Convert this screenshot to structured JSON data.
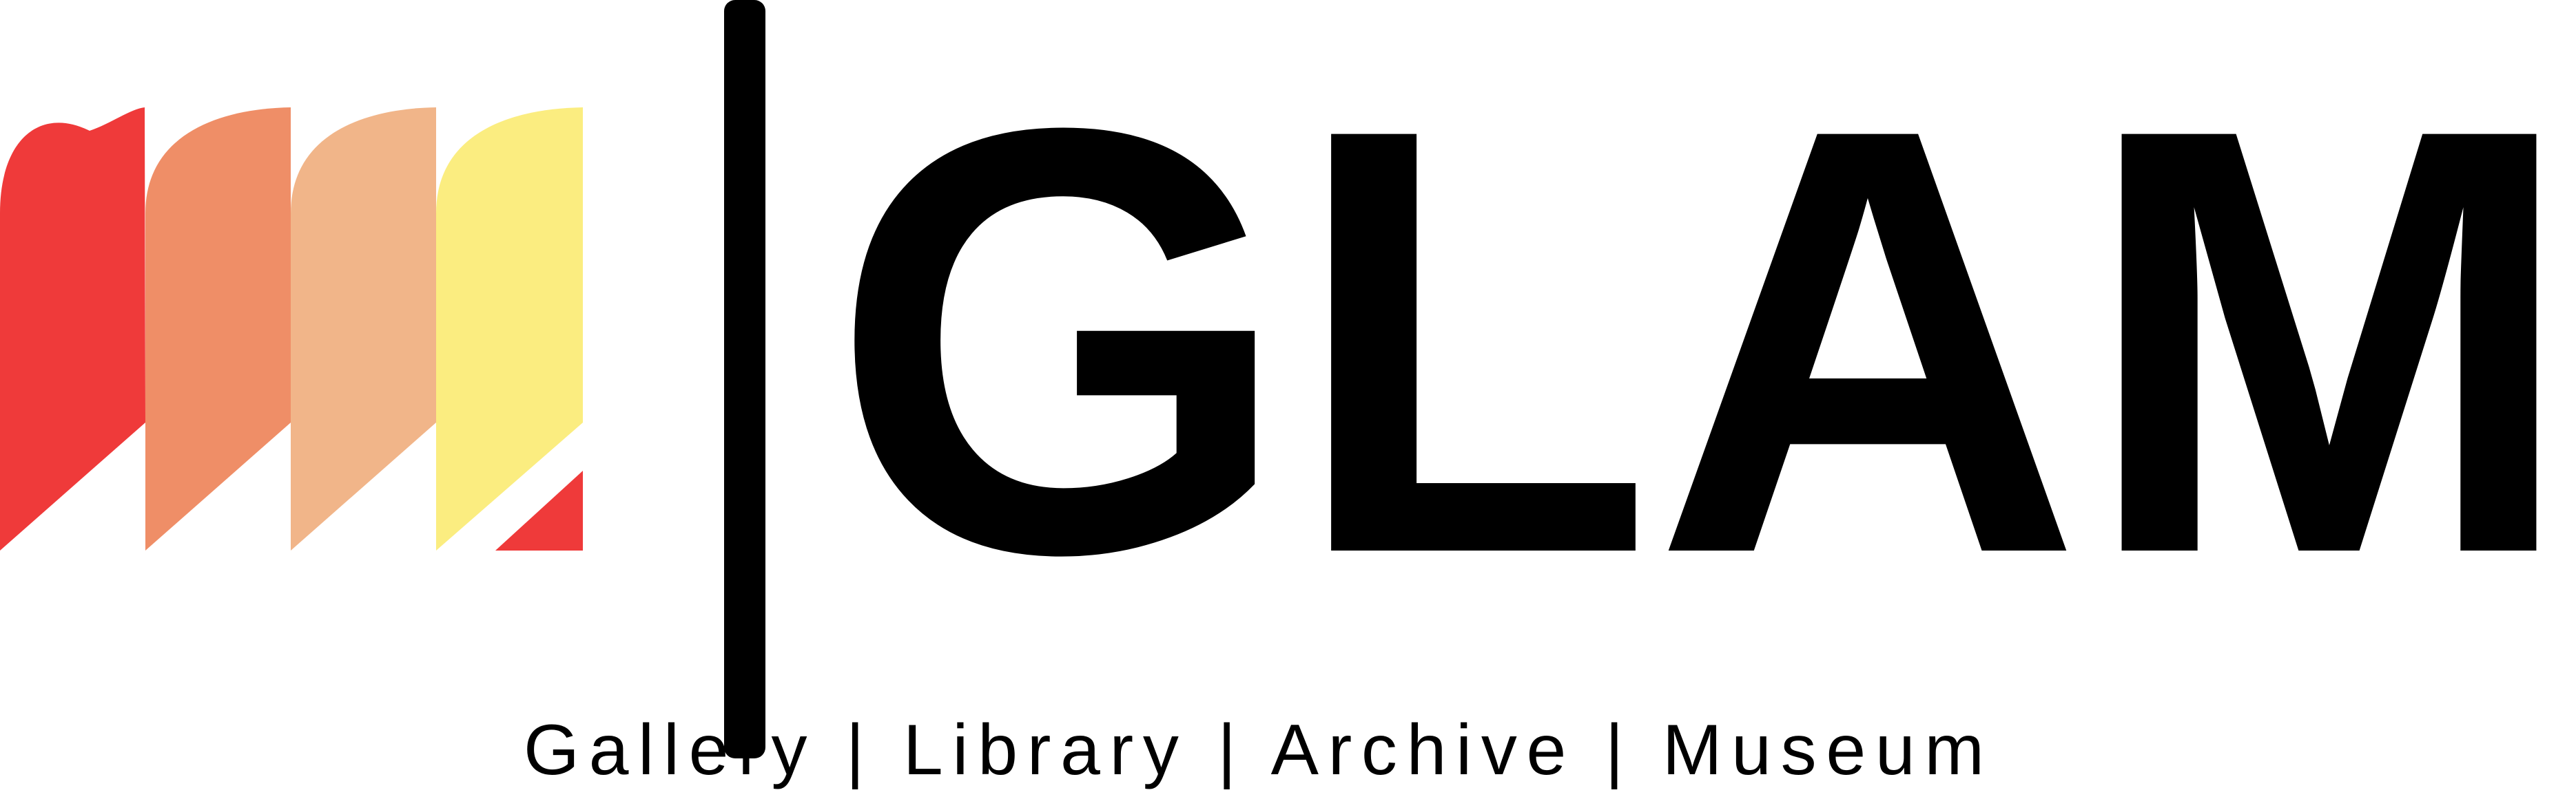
{
  "logo": {
    "wordmark": "GLAM",
    "tagline": "Gallery | Library | Archive | Museum",
    "colors": {
      "red": "#EF3A3A",
      "dark_orange": "#EF8E67",
      "light_orange": "#F1B589",
      "yellow": "#FBED80",
      "black": "#000000",
      "background": "#FFFFFF"
    }
  }
}
